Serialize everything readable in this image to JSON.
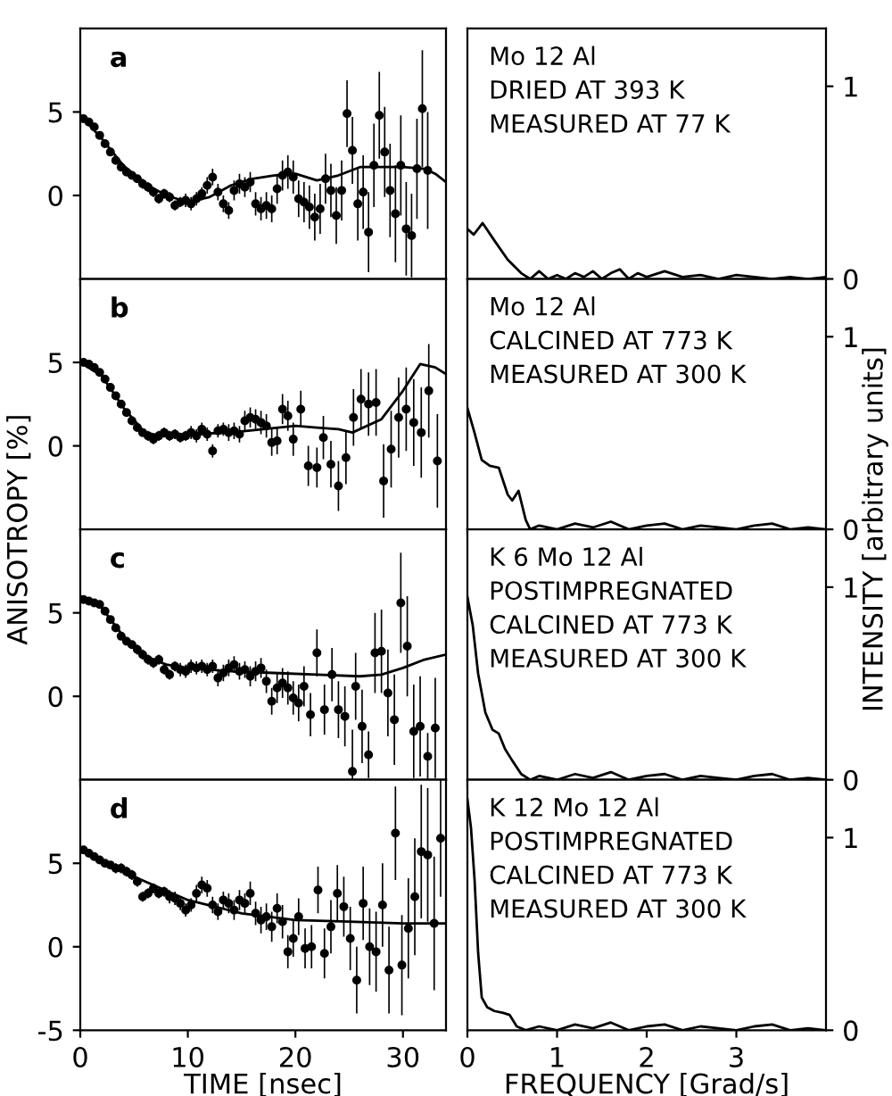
{
  "chart_data": [
    {
      "type": "scatter",
      "annotations": [
        "a"
      ],
      "marker": "circle",
      "xlim": [
        0,
        34
      ],
      "ylim": [
        -5,
        10
      ],
      "xticks": [
        0,
        10,
        20,
        30
      ],
      "yticks": [
        0,
        5
      ],
      "tick_labels": "y",
      "grid": false,
      "series": [
        {
          "type": "scatter",
          "color": "#000000",
          "x": [
            0.3,
            0.8,
            1.3,
            1.8,
            2.3,
            2.8,
            3.3,
            3.8,
            4.3,
            4.8,
            5.3,
            5.8,
            6.3,
            6.8,
            7.3,
            7.8,
            8.3,
            8.8,
            9.3,
            9.8,
            10.3,
            10.8,
            11.3,
            11.8,
            12.3,
            12.8,
            13.3,
            13.8,
            14.3,
            14.8,
            15.3,
            15.8,
            16.3,
            16.8,
            17.3,
            17.8,
            18.3,
            18.8,
            19.3,
            19.8,
            20.3,
            20.8,
            21.3,
            21.8,
            22.3,
            22.8,
            23.3,
            23.8,
            24.3,
            24.8,
            25.3,
            25.8,
            26.3,
            26.8,
            27.3,
            27.8,
            28.3,
            28.8,
            29.3,
            29.8,
            30.3,
            30.8,
            31.3,
            31.8,
            32.3
          ],
          "values": [
            4.6,
            4.4,
            4.1,
            3.6,
            3.1,
            2.6,
            2.1,
            1.7,
            1.4,
            1.2,
            1.0,
            0.7,
            0.5,
            0.2,
            -0.2,
            0.1,
            -0.1,
            -0.6,
            -0.4,
            -0.3,
            -0.5,
            -0.2,
            0.1,
            0.6,
            1.1,
            0.2,
            -0.5,
            -0.9,
            0.3,
            0.7,
            0.5,
            0.8,
            -0.5,
            -0.8,
            -0.6,
            -0.8,
            0.4,
            1.2,
            1.4,
            1.1,
            -0.2,
            -0.4,
            -0.7,
            -1.3,
            -0.8,
            1.0,
            0.3,
            -1.2,
            0.3,
            4.9,
            2.7,
            -0.5,
            0.2,
            -2.2,
            1.8,
            4.8,
            2.6,
            0.3,
            -1.1,
            1.8,
            -2.0,
            -2.4,
            1.6,
            5.2,
            1.5
          ],
          "errors": [
            0.2,
            0.2,
            0.2,
            0.2,
            0.2,
            0.2,
            0.2,
            0.2,
            0.2,
            0.2,
            0.2,
            0.3,
            0.3,
            0.3,
            0.3,
            0.3,
            0.3,
            0.3,
            0.3,
            0.4,
            0.4,
            0.4,
            0.4,
            0.5,
            0.5,
            0.5,
            0.5,
            0.5,
            0.6,
            0.6,
            0.6,
            0.6,
            0.7,
            0.7,
            0.8,
            0.8,
            0.9,
            0.9,
            1,
            1,
            1.1,
            1.2,
            1.3,
            1.4,
            1.5,
            1.5,
            1.6,
            1.7,
            1.8,
            2,
            2,
            2.2,
            2.2,
            2.4,
            2.5,
            2.6,
            2.7,
            2.8,
            2.9,
            3,
            2.8,
            2.5,
            3,
            3.5,
            3.5
          ]
        },
        {
          "type": "line",
          "marker": "none",
          "color": "#000000",
          "x": [
            0,
            2,
            4,
            6,
            8,
            10,
            12,
            14,
            16,
            18,
            20,
            22,
            24,
            26,
            28,
            30,
            32,
            33,
            34
          ],
          "values": [
            4.8,
            3.4,
            1.8,
            0.7,
            0.0,
            -0.4,
            -0.1,
            0.6,
            1.0,
            1.2,
            1.3,
            0.9,
            1.2,
            1.7,
            1.7,
            1.7,
            1.6,
            1.3,
            0.8
          ]
        }
      ]
    },
    {
      "type": "line",
      "annotations": [
        "Mo 12 Al",
        "DRIED AT 393 K",
        "MEASURED AT 77 K"
      ],
      "xlim": [
        0,
        4
      ],
      "y2lim": [
        0,
        1.3
      ],
      "xticks": [
        0,
        1,
        2,
        3
      ],
      "y2ticks": [
        0,
        1
      ],
      "tick_labels": "y",
      "grid": false,
      "series": [
        {
          "type": "line",
          "axis": "y2",
          "color": "#000000",
          "x": [
            0,
            0.07,
            0.17,
            0.3,
            0.45,
            0.6,
            0.7,
            0.8,
            0.9,
            1.0,
            1.1,
            1.2,
            1.3,
            1.4,
            1.5,
            1.6,
            1.7,
            1.8,
            1.9,
            2.0,
            2.2,
            2.4,
            2.6,
            2.8,
            3.0,
            3.2,
            3.4,
            3.6,
            3.8,
            4.0
          ],
          "values": [
            0.26,
            0.23,
            0.29,
            0.2,
            0.1,
            0.03,
            0.0,
            0.04,
            0.0,
            0.02,
            0.0,
            0.03,
            0.01,
            0.04,
            0.0,
            0.03,
            0.05,
            0.0,
            0.03,
            0.01,
            0.04,
            0.01,
            0.02,
            0.0,
            0.02,
            0.01,
            0.0,
            0.01,
            0.0,
            0.01
          ]
        }
      ]
    },
    {
      "type": "scatter",
      "annotations": [
        "b"
      ],
      "ylabel": "ANISOTROPY [%]",
      "marker": "circle",
      "xlim": [
        0,
        34
      ],
      "ylim": [
        -5,
        10
      ],
      "xticks": [
        0,
        10,
        20,
        30
      ],
      "yticks": [
        0,
        5
      ],
      "tick_labels": "y",
      "grid": false,
      "series": [
        {
          "type": "scatter",
          "color": "#000000",
          "x": [
            0.3,
            0.8,
            1.3,
            1.8,
            2.3,
            2.8,
            3.3,
            3.8,
            4.3,
            4.8,
            5.3,
            5.8,
            6.3,
            6.8,
            7.3,
            7.8,
            8.3,
            8.8,
            9.3,
            9.8,
            10.3,
            10.8,
            11.3,
            11.8,
            12.3,
            12.8,
            13.3,
            13.8,
            14.3,
            14.8,
            15.3,
            15.8,
            16.3,
            16.8,
            17.3,
            17.8,
            18.3,
            18.8,
            19.3,
            19.8,
            20.5,
            21.2,
            22,
            22.6,
            23.3,
            24,
            24.7,
            25.4,
            26.1,
            26.8,
            27.5,
            28.2,
            28.9,
            29.6,
            30.3,
            31,
            31.7,
            32.4,
            33.2
          ],
          "values": [
            5.0,
            4.9,
            4.7,
            4.4,
            4.0,
            3.5,
            3.0,
            2.5,
            2.0,
            1.5,
            1.1,
            0.8,
            0.6,
            0.4,
            0.6,
            0.8,
            0.6,
            0.7,
            0.5,
            0.6,
            0.8,
            0.6,
            1.0,
            0.7,
            -0.3,
            0.9,
            1.0,
            0.8,
            0.9,
            0.7,
            1.5,
            1.7,
            1.6,
            1.4,
            1.2,
            0.2,
            0.3,
            2.2,
            1.8,
            0.4,
            2.2,
            -1.2,
            -1.3,
            0.5,
            -1.1,
            -2.4,
            -0.7,
            1.7,
            2.8,
            2.5,
            2.6,
            -2.1,
            -0.2,
            1.7,
            2.2,
            1.4,
            0.8,
            3.3,
            -0.9
          ],
          "errors": [
            0.2,
            0.2,
            0.2,
            0.2,
            0.2,
            0.2,
            0.2,
            0.2,
            0.2,
            0.2,
            0.2,
            0.2,
            0.3,
            0.3,
            0.3,
            0.3,
            0.3,
            0.3,
            0.3,
            0.3,
            0.4,
            0.4,
            0.4,
            0.4,
            0.4,
            0.4,
            0.4,
            0.5,
            0.5,
            0.5,
            0.6,
            0.6,
            0.6,
            0.7,
            0.7,
            0.8,
            0.8,
            0.9,
            0.9,
            1,
            1.1,
            1.2,
            1.2,
            1.3,
            1.4,
            1.5,
            1.6,
            1.7,
            1.8,
            1.9,
            2,
            2.2,
            2.3,
            2.4,
            2.5,
            2.6,
            2.7,
            2.8,
            2.8
          ]
        },
        {
          "type": "line",
          "marker": "none",
          "color": "#000000",
          "x": [
            0,
            2,
            4,
            6,
            7.5,
            10,
            14,
            17,
            20,
            22,
            24,
            25.3,
            28,
            30,
            31.6,
            33,
            34
          ],
          "values": [
            5.0,
            4.2,
            2.3,
            0.8,
            0.6,
            0.7,
            0.8,
            1.0,
            1.2,
            1.1,
            1.0,
            0.8,
            1.6,
            3.3,
            4.9,
            4.7,
            4.3
          ]
        }
      ]
    },
    {
      "type": "line",
      "annotations": [
        "Mo 12 Al",
        "CALCINED AT 773 K",
        "MEASURED AT 300 K"
      ],
      "y2label": "INTENSITY [arbitrary units]",
      "xlim": [
        0,
        4
      ],
      "y2lim": [
        0,
        1.3
      ],
      "xticks": [
        0,
        1,
        2,
        3
      ],
      "y2ticks": [
        0,
        1
      ],
      "tick_labels": "y",
      "grid": false,
      "series": [
        {
          "type": "line",
          "axis": "y2",
          "color": "#000000",
          "x": [
            0,
            0.08,
            0.16,
            0.25,
            0.35,
            0.45,
            0.5,
            0.57,
            0.65,
            0.7,
            0.8,
            1.0,
            1.2,
            1.4,
            1.6,
            1.8,
            2.0,
            2.2,
            2.4,
            2.6,
            2.8,
            3.0,
            3.2,
            3.4,
            3.6,
            3.8,
            4.0
          ],
          "values": [
            0.63,
            0.5,
            0.36,
            0.33,
            0.32,
            0.18,
            0.15,
            0.2,
            0.05,
            0.0,
            0.02,
            0.0,
            0.03,
            0.01,
            0.04,
            0.0,
            0.02,
            0.03,
            0.0,
            0.02,
            0.01,
            0.0,
            0.02,
            0.03,
            0.0,
            0.01,
            0.0
          ]
        }
      ]
    },
    {
      "type": "scatter",
      "annotations": [
        "c"
      ],
      "marker": "circle",
      "xlim": [
        0,
        34
      ],
      "ylim": [
        -5,
        10
      ],
      "xticks": [
        0,
        10,
        20,
        30
      ],
      "yticks": [
        0,
        5
      ],
      "tick_labels": "y",
      "grid": false,
      "series": [
        {
          "type": "scatter",
          "color": "#000000",
          "x": [
            0.3,
            0.8,
            1.3,
            1.8,
            2.3,
            2.8,
            3.3,
            3.8,
            4.3,
            4.8,
            5.3,
            5.8,
            6.3,
            6.8,
            7.3,
            7.8,
            8.3,
            8.8,
            9.3,
            9.8,
            10.3,
            10.8,
            11.3,
            11.8,
            12.3,
            12.8,
            13.3,
            13.8,
            14.3,
            14.8,
            15.3,
            15.8,
            16.3,
            16.8,
            17.3,
            17.8,
            18.3,
            18.8,
            19.3,
            19.8,
            20.3,
            20.8,
            21.4,
            22,
            22.7,
            23.4,
            24,
            24.6,
            25.3,
            25.6,
            26.2,
            26.8,
            27.4,
            28,
            28.6,
            29.2,
            29.8,
            30.4,
            31,
            31.6,
            32.3,
            33
          ],
          "values": [
            5.8,
            5.7,
            5.6,
            5.5,
            5.1,
            4.6,
            4.1,
            3.6,
            3.3,
            3.1,
            2.8,
            2.5,
            2.2,
            2.0,
            2.2,
            1.6,
            1.3,
            1.8,
            1.6,
            1.5,
            1.8,
            1.7,
            1.8,
            1.6,
            1.8,
            1.1,
            1.4,
            1.7,
            1.9,
            1.5,
            1.6,
            1.2,
            1.5,
            1.7,
            0.9,
            -0.3,
            0.5,
            0.8,
            0.5,
            -0.1,
            -0.4,
            0.6,
            -1.1,
            2.6,
            -0.8,
            1.3,
            -0.8,
            -1.2,
            -4.5,
            0.6,
            -1.8,
            -3.5,
            2.6,
            2.7,
            0.2,
            -1.4,
            5.6,
            3.0,
            -2.1,
            -1.8,
            -3.6,
            -1.9
          ],
          "errors": [
            0.2,
            0.2,
            0.2,
            0.2,
            0.2,
            0.2,
            0.2,
            0.2,
            0.2,
            0.2,
            0.3,
            0.3,
            0.3,
            0.3,
            0.3,
            0.3,
            0.3,
            0.3,
            0.4,
            0.4,
            0.4,
            0.4,
            0.4,
            0.4,
            0.4,
            0.5,
            0.5,
            0.5,
            0.5,
            0.5,
            0.5,
            0.6,
            0.6,
            0.6,
            0.7,
            0.8,
            0.9,
            0.9,
            1,
            1,
            1.1,
            1.2,
            1.3,
            1.4,
            1.5,
            1.6,
            1.7,
            1.8,
            [
              -5,
              -2
            ],
            2,
            2.2,
            1.4,
            2.4,
            2.5,
            2.6,
            2.7,
            3,
            3,
            2.8,
            3,
            1.4,
            3
          ]
        },
        {
          "type": "line",
          "marker": "none",
          "color": "#000000",
          "x": [
            0,
            2,
            4,
            6,
            8,
            10,
            14,
            18,
            22,
            26,
            28,
            30,
            32,
            34
          ],
          "values": [
            5.8,
            5.3,
            3.6,
            2.4,
            1.9,
            1.7,
            1.5,
            1.4,
            1.3,
            1.2,
            1.3,
            1.7,
            2.2,
            2.5
          ]
        }
      ]
    },
    {
      "type": "line",
      "annotations": [
        "K 6 Mo 12 Al",
        "POSTIMPREGNATED",
        "CALCINED AT 773 K",
        "MEASURED AT 300 K"
      ],
      "xlim": [
        0,
        4
      ],
      "y2lim": [
        0,
        1.3
      ],
      "xticks": [
        0,
        1,
        2,
        3
      ],
      "y2ticks": [
        0,
        1
      ],
      "tick_labels": "y",
      "grid": false,
      "series": [
        {
          "type": "line",
          "axis": "y2",
          "color": "#000000",
          "x": [
            0,
            0.06,
            0.12,
            0.2,
            0.28,
            0.35,
            0.42,
            0.5,
            0.6,
            0.7,
            0.8,
            1.0,
            1.2,
            1.4,
            1.6,
            1.8,
            2.0,
            2.2,
            2.4,
            2.6,
            2.8,
            3.0,
            3.2,
            3.4,
            3.6,
            3.8,
            4.0
          ],
          "values": [
            0.95,
            0.8,
            0.55,
            0.35,
            0.26,
            0.24,
            0.16,
            0.1,
            0.03,
            0.0,
            0.02,
            0.0,
            0.03,
            0.01,
            0.04,
            0.0,
            0.02,
            0.03,
            0.0,
            0.02,
            0.01,
            0.0,
            0.02,
            0.03,
            0.0,
            0.01,
            0.0
          ]
        }
      ]
    },
    {
      "type": "scatter",
      "annotations": [
        "d"
      ],
      "xlabel": "TIME [nsec]",
      "marker": "circle",
      "xlim": [
        0,
        34
      ],
      "ylim": [
        -5,
        10
      ],
      "xticks": [
        0,
        10,
        20,
        30
      ],
      "yticks": [
        -5,
        0,
        5
      ],
      "grid": false,
      "series": [
        {
          "type": "scatter",
          "color": "#000000",
          "x": [
            0.3,
            0.8,
            1.3,
            1.8,
            2.3,
            2.8,
            3.3,
            3.8,
            4.3,
            4.8,
            5.3,
            5.8,
            6.3,
            6.8,
            7.3,
            7.8,
            8.3,
            8.8,
            9.3,
            9.8,
            10.3,
            10.8,
            11.3,
            11.8,
            12.3,
            12.8,
            13.3,
            13.8,
            14.3,
            14.8,
            15.3,
            15.8,
            16.3,
            16.8,
            17.3,
            17.8,
            18.3,
            18.8,
            19.3,
            19.8,
            20.3,
            20.9,
            21.5,
            22.1,
            22.7,
            23.3,
            23.9,
            24.5,
            25.1,
            25.7,
            26.3,
            26.9,
            27.5,
            28.1,
            28.7,
            29.3,
            29.9,
            30.5,
            31.1,
            31.7,
            32.3,
            32.9,
            33.5
          ],
          "values": [
            5.8,
            5.6,
            5.4,
            5.2,
            5.0,
            4.9,
            4.7,
            4.7,
            4.5,
            4.3,
            3.9,
            3.0,
            3.2,
            3.5,
            3.2,
            3.3,
            3.0,
            2.9,
            2.6,
            2.2,
            2.5,
            3.2,
            3.7,
            3.5,
            2.5,
            2.1,
            2.8,
            2.6,
            2.2,
            2.8,
            2.6,
            3.2,
            2.0,
            1.6,
            1.8,
            1.2,
            2.3,
            1.5,
            -0.3,
            0.5,
            1.8,
            -0.1,
            0,
            3.4,
            -0.4,
            1.2,
            3.2,
            2.4,
            0.5,
            -2,
            2.6,
            0,
            -0.3,
            2.5,
            -1.4,
            6.8,
            -1.1,
            1.1,
            3.0,
            5.7,
            5.5,
            1.4,
            6.5
          ],
          "errors": [
            0.2,
            0.2,
            0.2,
            0.2,
            0.2,
            0.2,
            0.3,
            0.3,
            0.3,
            0.3,
            0.3,
            0.3,
            0.3,
            0.3,
            0.3,
            0.3,
            0.4,
            0.4,
            0.4,
            0.4,
            0.4,
            0.5,
            0.5,
            0.5,
            0.5,
            0.5,
            0.5,
            0.6,
            0.6,
            0.6,
            0.6,
            0.7,
            0.7,
            0.8,
            0.8,
            0.9,
            0.9,
            1,
            1,
            1.1,
            1.1,
            1.2,
            1.3,
            1.4,
            1.5,
            1.6,
            1.7,
            1.8,
            1.9,
            2,
            2.2,
            2.3,
            2.4,
            2.5,
            2.6,
            2.8,
            3,
            3,
            3.5,
            4,
            4,
            4,
            3.5
          ]
        },
        {
          "type": "line",
          "marker": "none",
          "color": "#000000",
          "x": [
            0,
            5,
            10,
            15,
            20,
            25,
            30,
            34
          ],
          "values": [
            5.8,
            4.2,
            2.8,
            2.0,
            1.6,
            1.5,
            1.4,
            1.4
          ]
        }
      ]
    },
    {
      "type": "line",
      "annotations": [
        "K 12 Mo 12 Al",
        "POSTIMPREGNATED",
        "CALCINED AT 773 K",
        "MEASURED AT 300 K"
      ],
      "xlabel": "FREQUENCY [Grad/s]",
      "xlim": [
        0,
        4
      ],
      "y2lim": [
        0,
        1.3
      ],
      "xticks": [
        0,
        1,
        2,
        3
      ],
      "y2ticks": [
        0,
        1
      ],
      "grid": false,
      "series": [
        {
          "type": "line",
          "axis": "y2",
          "color": "#000000",
          "x": [
            0,
            0.04,
            0.08,
            0.12,
            0.16,
            0.22,
            0.3,
            0.4,
            0.47,
            0.55,
            0.65,
            0.8,
            1.0,
            1.2,
            1.4,
            1.6,
            1.8,
            2.0,
            2.2,
            2.4,
            2.6,
            2.8,
            3.0,
            3.2,
            3.4,
            3.6,
            3.8,
            4.0
          ],
          "values": [
            1.2,
            1.05,
            0.78,
            0.4,
            0.17,
            0.12,
            0.1,
            0.09,
            0.08,
            0.02,
            0.0,
            0.02,
            0.0,
            0.03,
            0.01,
            0.04,
            0.0,
            0.02,
            0.03,
            0.0,
            0.02,
            0.01,
            0.0,
            0.02,
            0.03,
            0.0,
            0.01,
            0.0
          ]
        }
      ]
    }
  ]
}
